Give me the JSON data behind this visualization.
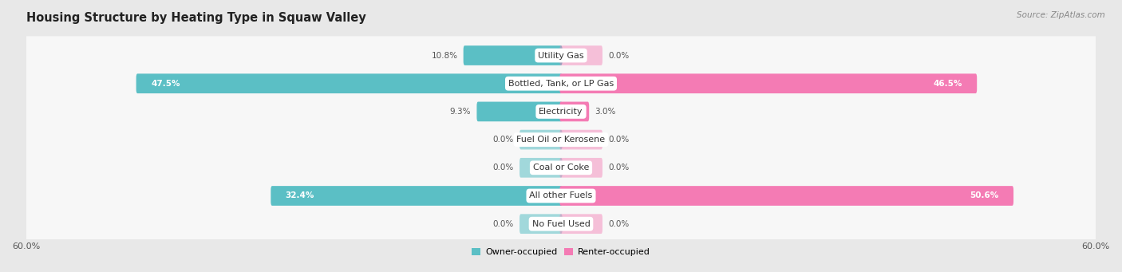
{
  "title": "Housing Structure by Heating Type in Squaw Valley",
  "source": "Source: ZipAtlas.com",
  "categories": [
    "Utility Gas",
    "Bottled, Tank, or LP Gas",
    "Electricity",
    "Fuel Oil or Kerosene",
    "Coal or Coke",
    "All other Fuels",
    "No Fuel Used"
  ],
  "owner_values": [
    10.8,
    47.5,
    9.3,
    0.0,
    0.0,
    32.4,
    0.0
  ],
  "renter_values": [
    0.0,
    46.5,
    3.0,
    0.0,
    0.0,
    50.6,
    0.0
  ],
  "owner_color": "#5BBFC5",
  "renter_color": "#F47BB4",
  "owner_label": "Owner-occupied",
  "renter_label": "Renter-occupied",
  "xlim": 60.0,
  "bg_color": "#e8e8e8",
  "row_color": "#f7f7f7",
  "title_fontsize": 10.5,
  "source_fontsize": 7.5,
  "cat_fontsize": 8,
  "val_fontsize": 7.5,
  "legend_fontsize": 8,
  "zero_stub": 4.5,
  "val_inside_threshold": 15.0
}
